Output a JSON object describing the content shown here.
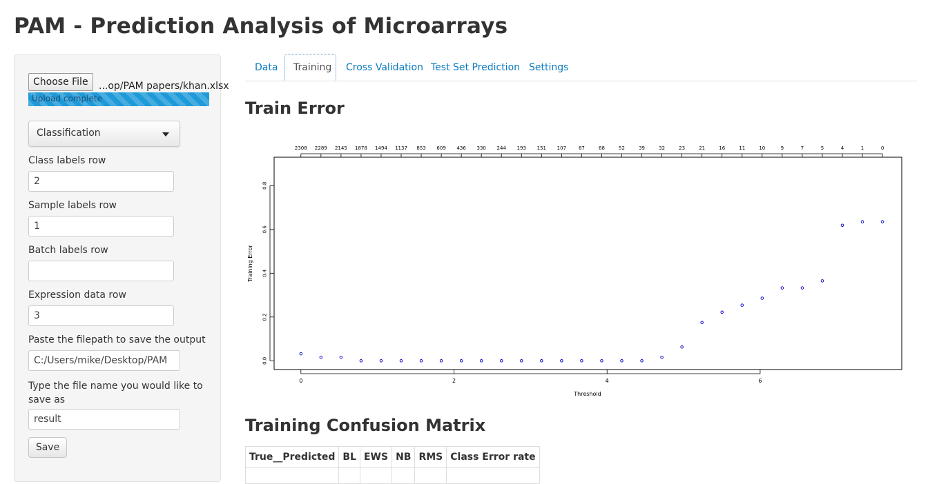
{
  "app": {
    "title": "PAM - Prediction Analysis of Microarrays"
  },
  "sidebar": {
    "choose_file_label": "Choose File",
    "file_name": "...op/PAM papers/khan.xlsx",
    "upload_status": "Upload complete",
    "analysis_type": "Classification",
    "class_labels_row": {
      "label": "Class labels row",
      "value": "2"
    },
    "sample_labels_row": {
      "label": "Sample labels row",
      "value": "1"
    },
    "batch_labels_row": {
      "label": "Batch labels row",
      "value": ""
    },
    "expression_data_row": {
      "label": "Expression data row",
      "value": "3"
    },
    "output_path": {
      "label": "Paste the filepath to save the output",
      "value": "C:/Users/mike/Desktop/PAM"
    },
    "file_name_field": {
      "label": "Type the file name you would like to save as",
      "value": "result"
    },
    "save_label": "Save"
  },
  "tabs": [
    {
      "label": "Data",
      "active": false
    },
    {
      "label": "Training",
      "active": true
    },
    {
      "label": "Cross Validation",
      "active": false
    },
    {
      "label": "Test Set Prediction",
      "active": false
    },
    {
      "label": "Settings",
      "active": false
    }
  ],
  "main": {
    "train_error_heading": "Train Error",
    "confusion_heading": "Training Confusion Matrix",
    "confusion_columns": [
      "True__Predicted",
      "BL",
      "EWS",
      "NB",
      "RMS",
      "Class Error rate"
    ]
  },
  "colors": {
    "accent": "#0a7bbf",
    "points": "#0000cc",
    "progress": "#1e9ad8"
  },
  "chart_data": {
    "type": "scatter",
    "title": "",
    "xlabel": "Threshold",
    "ylabel": "Training Error",
    "xlim": [
      -0.35,
      7.85
    ],
    "ylim": [
      -0.04,
      0.93
    ],
    "x_ticks": [
      0,
      2,
      4,
      6
    ],
    "y_ticks": [
      "0.0",
      "0.2",
      "0.4",
      "0.6",
      "0.8"
    ],
    "x": [
      0,
      0.262,
      0.524,
      0.786,
      1.048,
      1.31,
      1.572,
      1.834,
      2.096,
      2.358,
      2.62,
      2.882,
      3.144,
      3.406,
      3.668,
      3.93,
      4.192,
      4.454,
      4.716,
      4.978,
      5.24,
      5.502,
      5.764,
      6.026,
      6.288,
      6.55,
      6.812,
      7.074,
      7.336,
      7.598
    ],
    "y": [
      0.032,
      0.016,
      0.016,
      0,
      0,
      0,
      0,
      0,
      0,
      0,
      0,
      0,
      0,
      0,
      0,
      0,
      0,
      0,
      0.016,
      0.063,
      0.175,
      0.222,
      0.254,
      0.286,
      0.333,
      0.333,
      0.365,
      0.619,
      0.635,
      0.635
    ],
    "top_axis_labels": [
      "2308",
      "2289",
      "2145",
      "1878",
      "1494",
      "1137",
      "853",
      "609",
      "436",
      "330",
      "244",
      "193",
      "151",
      "107",
      "87",
      "68",
      "52",
      "39",
      "32",
      "23",
      "21",
      "16",
      "11",
      "10",
      "9",
      "7",
      "5",
      "4",
      "1",
      "0"
    ]
  }
}
